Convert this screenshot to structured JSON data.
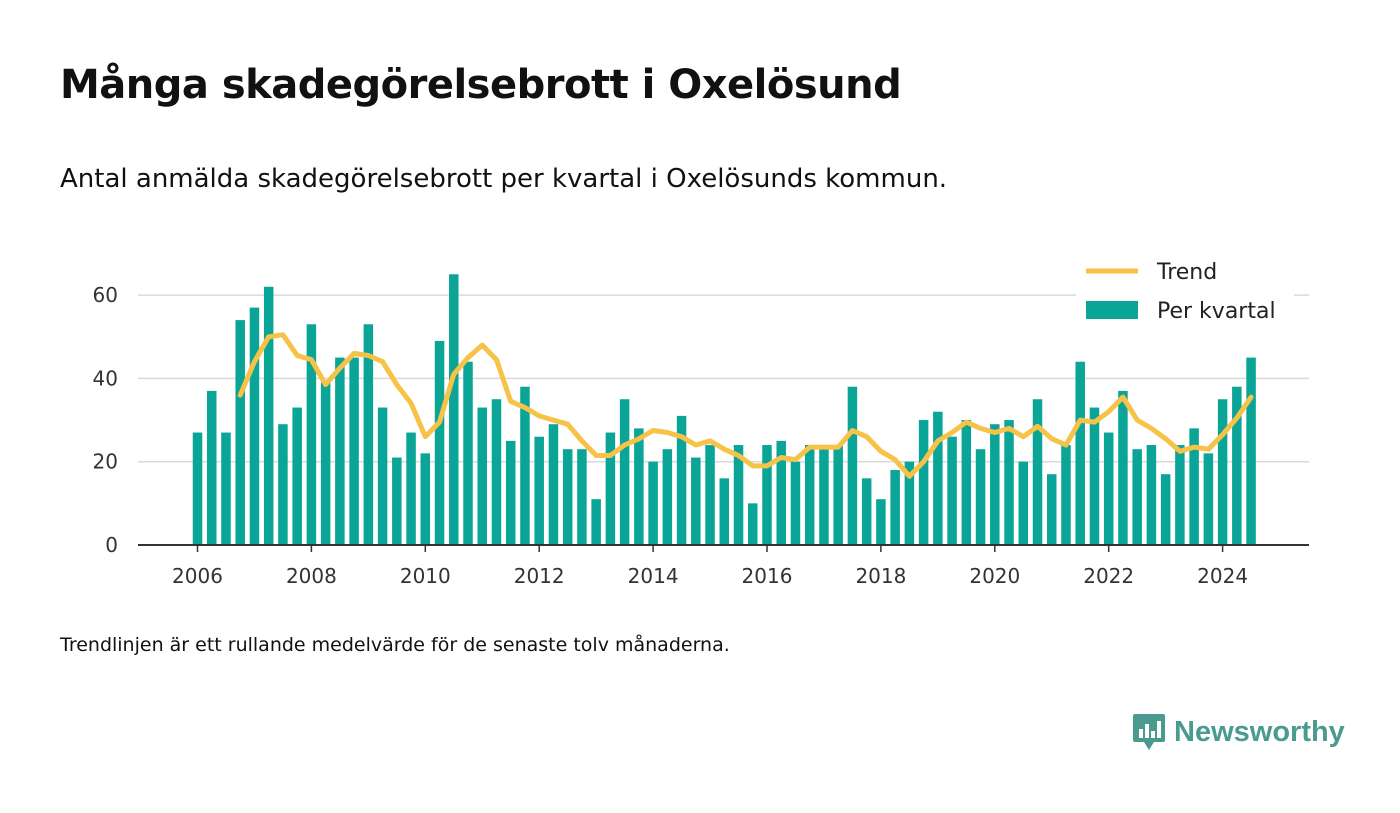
{
  "title": "Många skadegörelsebrott i Oxelösund",
  "subtitle": "Antal anmälda skadegörelsebrott per kvartal i Oxelösunds kommun.",
  "note": "Trendlinjen är ett rullande medelvärde för de senaste tolv månaderna.",
  "brand": {
    "name": "Newsworthy",
    "icon": "newsworthy-logo-icon"
  },
  "colors": {
    "bars": "#0aa597",
    "trend": "#f6c247",
    "grid": "#d9d9d9",
    "axis": "#333333"
  },
  "chart_data": {
    "type": "bar",
    "x_start": "2006 Q1",
    "x_ticks": [
      "2006",
      "2008",
      "2010",
      "2012",
      "2014",
      "2016",
      "2018",
      "2020",
      "2022",
      "2024"
    ],
    "y_ticks": [
      "0",
      "20",
      "40",
      "60"
    ],
    "ylim": [
      0,
      70
    ],
    "grid": true,
    "legend_position": "top-right",
    "legend": [
      "Trend",
      "Per kvartal"
    ],
    "series": [
      {
        "name": "Per kvartal",
        "type": "bar",
        "values": [
          27,
          37,
          27,
          54,
          57,
          62,
          29,
          33,
          53,
          39,
          45,
          45,
          53,
          33,
          21,
          27,
          22,
          49,
          65,
          44,
          33,
          35,
          25,
          38,
          26,
          29,
          23,
          23,
          11,
          27,
          35,
          28,
          20,
          23,
          31,
          21,
          24,
          16,
          24,
          10,
          24,
          25,
          20,
          24,
          24,
          24,
          38,
          16,
          11,
          18,
          20,
          30,
          32,
          26,
          30,
          23,
          29,
          30,
          20,
          35,
          17,
          24,
          44,
          33,
          27,
          37,
          23,
          24,
          17,
          24,
          28,
          22,
          35,
          38,
          45
        ]
      },
      {
        "name": "Trend",
        "type": "line",
        "values": [
          null,
          null,
          null,
          36,
          44,
          50,
          50.5,
          45.5,
          44.5,
          38.5,
          42.5,
          46,
          45.5,
          44,
          38.5,
          34,
          26,
          29.5,
          41,
          45,
          48,
          44.5,
          34.5,
          33,
          31,
          30,
          29,
          25,
          21.5,
          21.5,
          24,
          25.5,
          27.5,
          27,
          26,
          24,
          25,
          23,
          21.5,
          19,
          19,
          21,
          20.5,
          23.5,
          23.5,
          23.5,
          27.5,
          26,
          22.5,
          20.5,
          16.5,
          20,
          25,
          27,
          29.5,
          28,
          27,
          28,
          26,
          28.5,
          25.5,
          24,
          30,
          29.5,
          32,
          35.5,
          30,
          28,
          25.5,
          22.5,
          23.5,
          23,
          26.5,
          30.5,
          35.5
        ]
      }
    ]
  }
}
